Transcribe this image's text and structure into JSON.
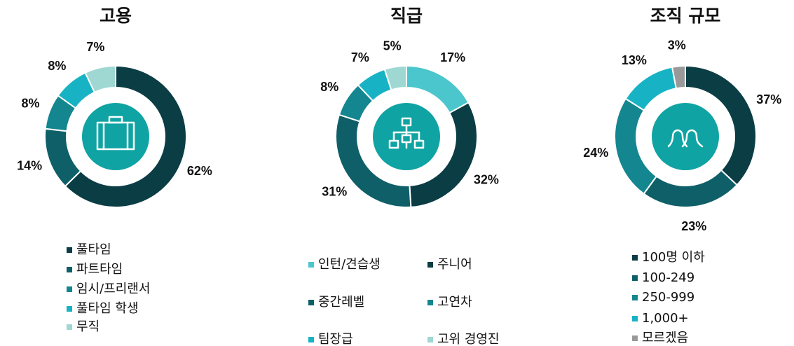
{
  "chart_data": [
    {
      "type": "donut",
      "title": "고용",
      "categories": [
        "풀타임",
        "파트타임",
        "임시/프리랜서",
        "풀타임 학생",
        "무직"
      ],
      "values": [
        62,
        14,
        8,
        8,
        7
      ],
      "value_labels": [
        "62%",
        "14%",
        "8%",
        "8%",
        "7%"
      ],
      "colors": [
        "#0b3d45",
        "#0e5f68",
        "#14868f",
        "#17b3c4",
        "#9fd8d3"
      ]
    },
    {
      "type": "donut",
      "title": "직급",
      "categories": [
        "인턴/견습생",
        "주니어",
        "중간레벨",
        "고연차",
        "팀장급",
        "고위 경영진"
      ],
      "values": [
        17,
        32,
        31,
        8,
        7,
        5
      ],
      "value_labels": [
        "17%",
        "32%",
        "31%",
        "8%",
        "7%",
        "5%"
      ],
      "colors": [
        "#4bc6cc",
        "#0b3d45",
        "#0e5f68",
        "#14868f",
        "#17b3c4",
        "#9fd8d3"
      ]
    },
    {
      "type": "donut",
      "title": "조직 규모",
      "categories": [
        "100명 이하",
        "100-249",
        "250-999",
        "1,000+",
        "모르겠음"
      ],
      "values": [
        37,
        23,
        24,
        13,
        3
      ],
      "value_labels": [
        "37%",
        "23%",
        "24%",
        "13%",
        "3%"
      ],
      "colors": [
        "#0b3d45",
        "#0e5f68",
        "#14868f",
        "#17b3c4",
        "#999999"
      ]
    }
  ]
}
